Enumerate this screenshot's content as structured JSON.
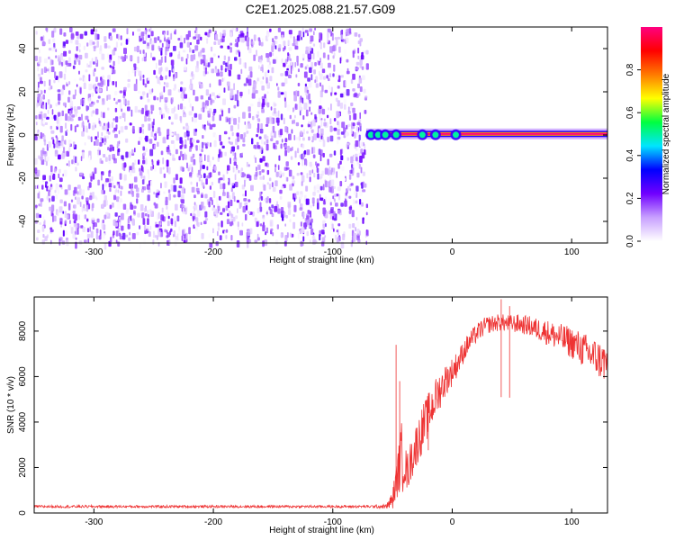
{
  "figure": {
    "title": "C2E1.2025.088.21.57.G09"
  },
  "chart_data": [
    {
      "type": "heatmap",
      "title": "C2E1.2025.088.21.57.G09",
      "xlabel": "Height of straight line (km)",
      "ylabel": "Frequency (Hz)",
      "xlim": [
        -350,
        130
      ],
      "ylim": [
        -50,
        50
      ],
      "xticks": [
        -300,
        -200,
        -100,
        0,
        100
      ],
      "yticks": [
        -40,
        -20,
        0,
        20,
        40
      ],
      "noise_region_x": [
        -350,
        -72
      ],
      "noise_amplitude_range": [
        0.0,
        0.25
      ],
      "signal_line": {
        "x_start": -72,
        "x_end": 130,
        "frequency": 0.5,
        "peak_amplitude": 1.0,
        "bright_spots_x": [
          -68,
          -62,
          -56,
          -47,
          -25,
          -14,
          3
        ]
      },
      "colorbar": {
        "label": "Normalized spectral amplitude",
        "range": [
          0.0,
          1.0
        ],
        "ticks": [
          0.0,
          0.2,
          0.4,
          0.6,
          0.8
        ],
        "colors": [
          "#ffffff",
          "#c8a0ff",
          "#7000ff",
          "#0000ff",
          "#00e5ff",
          "#00ff40",
          "#ffff00",
          "#ff7a00",
          "#ff0000",
          "#ff0080"
        ]
      },
      "grid": false
    },
    {
      "type": "line",
      "xlabel": "Height of straight line (km)",
      "ylabel": "SNR (10 * v/v)",
      "xlim": [
        -350,
        130
      ],
      "ylim": [
        0,
        9500
      ],
      "xticks": [
        -300,
        -200,
        -100,
        0,
        100
      ],
      "yticks": [
        0,
        2000,
        4000,
        6000,
        8000
      ],
      "grid": false,
      "series": [
        {
          "color": "#ee3333",
          "x": [
            -350,
            -300,
            -250,
            -200,
            -150,
            -100,
            -70,
            -55,
            -50,
            -45,
            -42,
            -40,
            -38,
            -35,
            -30,
            -25,
            -20,
            -15,
            -10,
            -5,
            0,
            5,
            10,
            15,
            20,
            25,
            30,
            35,
            40,
            45,
            50,
            55,
            60,
            65,
            70,
            75,
            80,
            85,
            90,
            95,
            100,
            105,
            110,
            115,
            120,
            125,
            130
          ],
          "y": [
            300,
            300,
            300,
            300,
            300,
            300,
            300,
            320,
            700,
            2200,
            3000,
            2600,
            2000,
            2500,
            3300,
            4000,
            4600,
            5200,
            5700,
            6100,
            6400,
            6800,
            7300,
            7700,
            8000,
            8250,
            8400,
            8450,
            8500,
            8450,
            8450,
            8450,
            8400,
            8350,
            8250,
            8200,
            8100,
            8000,
            7900,
            7800,
            7700,
            7550,
            7400,
            7250,
            7100,
            6950,
            6850
          ],
          "noise_amplitude": [
            80,
            80,
            80,
            80,
            80,
            80,
            80,
            150,
            600,
            1500,
            2500,
            1500,
            1200,
            1300,
            1400,
            1500,
            1400,
            1300,
            1200,
            1000,
            900,
            800,
            700,
            650,
            600,
            600,
            550,
            550,
            550,
            550,
            550,
            600,
            600,
            650,
            700,
            750,
            800,
            850,
            900,
            950,
            1000,
            1050,
            1100,
            1150,
            1200,
            1250,
            1300
          ],
          "spikes": [
            {
              "x": -47,
              "y": 7400
            },
            {
              "x": -44,
              "y": 5800
            },
            {
              "x": 41,
              "y": 9400
            },
            {
              "x": 48,
              "y": 9100
            },
            {
              "x": -20,
              "y": 4300
            }
          ]
        }
      ]
    }
  ]
}
